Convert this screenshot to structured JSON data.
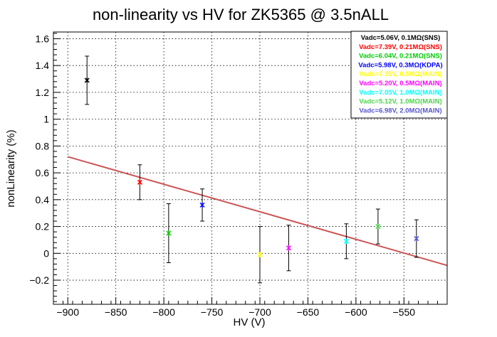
{
  "chart_data": {
    "type": "scatter",
    "title": "non-linearity vs HV for ZK5365 @ 3.5nALL",
    "xlabel": "HV (V)",
    "ylabel": "nonLinearity (%)",
    "xlim": [
      -915,
      -505
    ],
    "ylim": [
      -0.38,
      1.65
    ],
    "grid": true,
    "x_ticks": [
      -900,
      -850,
      -800,
      -750,
      -700,
      -650,
      -600,
      -550
    ],
    "y_ticks": [
      -0.2,
      0,
      0.2,
      0.4,
      0.6,
      0.8,
      1,
      1.2,
      1.4,
      1.6
    ],
    "x_tick_labels": [
      "−900",
      "−850",
      "−800",
      "−750",
      "−700",
      "−650",
      "−600",
      "−550"
    ],
    "y_tick_labels": [
      "−0.2",
      "0",
      "0.2",
      "0.4",
      "0.6",
      "0.8",
      "1",
      "1.2",
      "1.4",
      "1.6"
    ],
    "legend_position": "top-right",
    "series": [
      {
        "name": "Vadc=5.06V, 0.1MΩ(SNS)",
        "color": "#000000",
        "x": -880,
        "y": 1.29,
        "err": 0.18
      },
      {
        "name": "Vadc=7.39V, 0.21MΩ(SNS)",
        "color": "#ff0000",
        "x": -825,
        "y": 0.53,
        "err": 0.13
      },
      {
        "name": "Vadc=6.04V, 0.21MΩ(SNS)",
        "color": "#00cc00",
        "x": -795,
        "y": 0.15,
        "err": 0.22
      },
      {
        "name": "Vadc=5.98V, 0.3MΩ(KDPA)",
        "color": "#0000ff",
        "x": -760,
        "y": 0.36,
        "err": 0.12
      },
      {
        "name": "Vadc=7.35V, 0.5MΩ(MAIN)",
        "color": "#ffff00",
        "x": -700,
        "y": -0.01,
        "err": 0.21
      },
      {
        "name": "Vadc=5.20V, 0.5MΩ(MAIN)",
        "color": "#ff00ff",
        "x": -670,
        "y": 0.04,
        "err": 0.17
      },
      {
        "name": "Vadc=7.05V, 1.0MΩ(MAIN)",
        "color": "#00ffff",
        "x": -610,
        "y": 0.09,
        "err": 0.13
      },
      {
        "name": "Vadc=5.12V, 1.0MΩ(MAIN)",
        "color": "#4cd24c",
        "x": -577,
        "y": 0.2,
        "err": 0.13
      },
      {
        "name": "Vadc=6.98V, 2.0MΩ(MAIN)",
        "color": "#5555cc",
        "x": -537,
        "y": 0.11,
        "err": 0.14
      }
    ],
    "fit_line": {
      "color": "#cc5555",
      "x": [
        -900,
        -505
      ],
      "y": [
        0.72,
        -0.09
      ]
    }
  }
}
